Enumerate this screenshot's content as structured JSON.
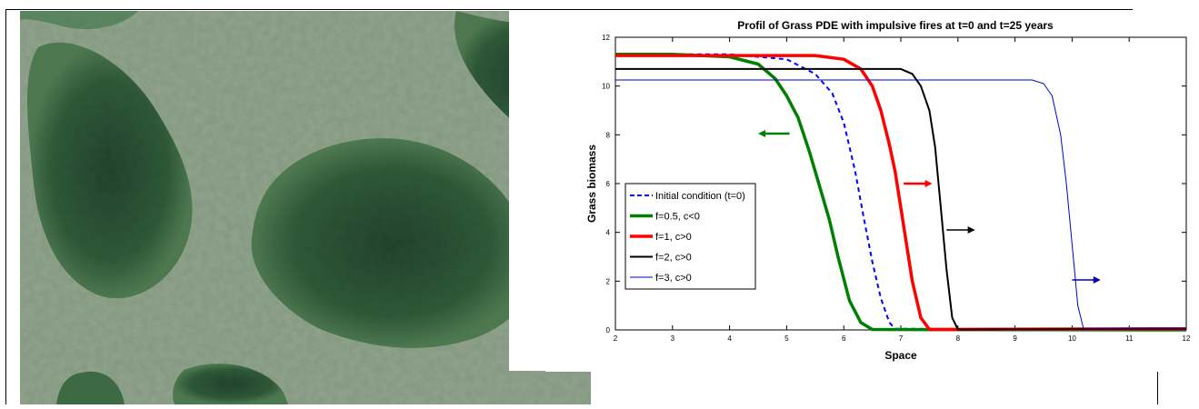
{
  "photo": {
    "subject_icon": "aerial-savanna-forest-patches"
  },
  "chart_data": {
    "type": "line",
    "title": "Profil of Grass PDE with impulsive fires at t=0 and t=25 years",
    "xlabel": "Space",
    "ylabel": "Grass biomass",
    "xlim": [
      2,
      12
    ],
    "ylim": [
      0,
      12
    ],
    "xticks": [
      "2",
      "3",
      "4",
      "5",
      "6",
      "7",
      "8",
      "9",
      "10",
      "11",
      "12"
    ],
    "yticks": [
      "0",
      "2",
      "4",
      "6",
      "8",
      "10",
      "12"
    ],
    "grid": false,
    "legend_position": "middle-left",
    "series": [
      {
        "name": "Initial condition (t=0)",
        "color": "#0000ff",
        "style": "dashed",
        "width": 2,
        "x": [
          2,
          4,
          5,
          5.5,
          5.8,
          6,
          6.2,
          6.35,
          6.5,
          6.65,
          6.8,
          6.9,
          12
        ],
        "y": [
          11.3,
          11.3,
          11.1,
          10.5,
          9.7,
          8.5,
          6.5,
          4.6,
          2.8,
          1.3,
          0.3,
          0.05,
          0
        ]
      },
      {
        "name": "f=0.5, c<0",
        "color": "#008000",
        "style": "solid",
        "width": 3.5,
        "x": [
          2,
          3,
          4,
          4.5,
          4.8,
          5,
          5.2,
          5.4,
          5.6,
          5.75,
          5.9,
          6.1,
          6.3,
          6.5,
          12
        ],
        "y": [
          11.3,
          11.3,
          11.2,
          10.9,
          10.3,
          9.6,
          8.7,
          7.3,
          5.7,
          4.5,
          3.0,
          1.2,
          0.3,
          0.02,
          0
        ]
      },
      {
        "name": "f=1, c>0",
        "color": "#ff0000",
        "style": "solid",
        "width": 3.5,
        "x": [
          2,
          5.5,
          6,
          6.3,
          6.5,
          6.65,
          6.8,
          6.9,
          7.0,
          7.1,
          7.2,
          7.35,
          7.5,
          12
        ],
        "y": [
          11.25,
          11.25,
          11.1,
          10.7,
          10.0,
          9.0,
          7.6,
          6.5,
          5.0,
          3.5,
          2.0,
          0.5,
          0.02,
          0.05
        ]
      },
      {
        "name": "f=2, c>0",
        "color": "#000000",
        "style": "solid",
        "width": 2,
        "x": [
          2,
          7,
          7.2,
          7.35,
          7.5,
          7.6,
          7.7,
          7.8,
          7.9,
          8.0,
          12
        ],
        "y": [
          10.7,
          10.7,
          10.5,
          10.0,
          9.0,
          7.5,
          5.0,
          2.5,
          0.5,
          0.02,
          0.05
        ]
      },
      {
        "name": "f=3, c>0",
        "color": "#0000cc",
        "style": "solid",
        "width": 1,
        "x": [
          2,
          9.3,
          9.5,
          9.65,
          9.8,
          9.9,
          10.0,
          10.1,
          10.2,
          12
        ],
        "y": [
          10.25,
          10.25,
          10.1,
          9.6,
          8.0,
          6.0,
          3.5,
          1.0,
          0.05,
          0.05
        ]
      }
    ],
    "annotations": [
      {
        "series": "f=0.5, c<0",
        "direction": "left",
        "x_from": 5.05,
        "x_to": 4.5,
        "y": 8.05
      },
      {
        "series": "f=1, c>0",
        "direction": "right",
        "x_from": 7.05,
        "x_to": 7.55,
        "y": 6.0
      },
      {
        "series": "f=2, c>0",
        "direction": "right",
        "x_from": 7.8,
        "x_to": 8.3,
        "y": 4.1
      },
      {
        "series": "f=3, c>0",
        "direction": "right",
        "x_from": 10.0,
        "x_to": 10.5,
        "y": 2.05
      }
    ]
  }
}
